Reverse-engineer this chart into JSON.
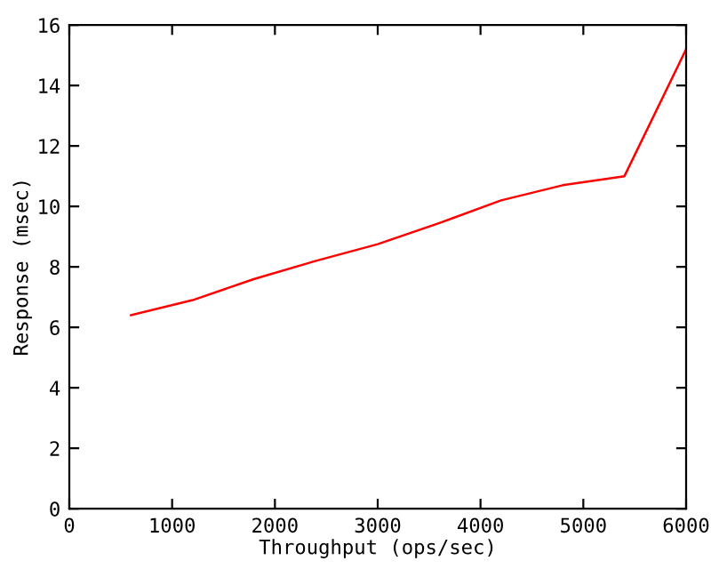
{
  "chart_data": {
    "type": "line",
    "xlabel": "Throughput (ops/sec)",
    "ylabel": "Response (msec)",
    "x": [
      600,
      1200,
      1800,
      2400,
      3000,
      3600,
      4200,
      4800,
      5400,
      6000
    ],
    "series": [
      {
        "color": "#ff0000",
        "values": [
          6.4,
          6.9,
          7.6,
          8.2,
          8.75,
          9.45,
          10.2,
          10.7,
          11.0,
          15.2
        ]
      }
    ],
    "xlim": [
      0,
      6000
    ],
    "ylim": [
      0,
      16
    ],
    "xticks": [
      0,
      1000,
      2000,
      3000,
      4000,
      5000,
      6000
    ],
    "yticks": [
      0,
      2,
      4,
      6,
      8,
      10,
      12,
      14,
      16
    ],
    "grid": false,
    "legend": false,
    "marker": "none",
    "line_style": "solid"
  }
}
